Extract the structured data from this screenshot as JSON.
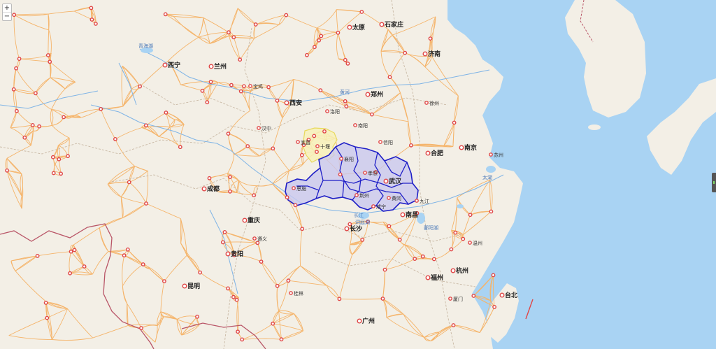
{
  "map": {
    "controls": {
      "zoom_in": "+",
      "zoom_out": "−"
    },
    "colors": {
      "land": "#f3efe6",
      "sea": "#a9d3f3",
      "road": "#f5b46a",
      "border": "#b95567",
      "highlight_fill": "#c9c8ef",
      "highlight_stroke": "#1f1fc7",
      "yellow_fill": "#f7f1b8",
      "yellow_stroke": "#e8d95c"
    },
    "cities": [
      {
        "name": "西宁",
        "tier": "big"
      },
      {
        "name": "兰州",
        "tier": "big"
      },
      {
        "name": "西安",
        "tier": "big"
      },
      {
        "name": "郑州",
        "tier": "big"
      },
      {
        "name": "太原",
        "tier": "big"
      },
      {
        "name": "石家庄",
        "tier": "big"
      },
      {
        "name": "济南",
        "tier": "big"
      },
      {
        "name": "成都",
        "tier": "big"
      },
      {
        "name": "重庆",
        "tier": "big"
      },
      {
        "name": "武汉",
        "tier": "big"
      },
      {
        "name": "合肥",
        "tier": "big"
      },
      {
        "name": "南京",
        "tier": "big"
      },
      {
        "name": "南昌",
        "tier": "big"
      },
      {
        "name": "长沙",
        "tier": "big"
      },
      {
        "name": "贵阳",
        "tier": "big"
      },
      {
        "name": "昆明",
        "tier": "big"
      },
      {
        "name": "杭州",
        "tier": "big"
      },
      {
        "name": "福州",
        "tier": "big"
      },
      {
        "name": "台北",
        "tier": "big"
      },
      {
        "name": "广州",
        "tier": "big"
      },
      {
        "name": "宜昌",
        "tier": "small"
      },
      {
        "name": "襄阳",
        "tier": "small"
      },
      {
        "name": "十堰",
        "tier": "small"
      },
      {
        "name": "荆州",
        "tier": "small"
      },
      {
        "name": "黄冈",
        "tier": "small"
      },
      {
        "name": "恩施",
        "tier": "small"
      },
      {
        "name": "孝感",
        "tier": "small"
      },
      {
        "name": "咸宁",
        "tier": "small"
      },
      {
        "name": "九江",
        "tier": "small"
      },
      {
        "name": "洛阳",
        "tier": "small"
      },
      {
        "name": "信阳",
        "tier": "small"
      },
      {
        "name": "徐州",
        "tier": "small"
      },
      {
        "name": "苏州",
        "tier": "small"
      },
      {
        "name": "温州",
        "tier": "small"
      },
      {
        "name": "厦门",
        "tier": "small"
      },
      {
        "name": "桂林",
        "tier": "small"
      },
      {
        "name": "遵义",
        "tier": "small"
      },
      {
        "name": "宝鸡",
        "tier": "small"
      },
      {
        "name": "汉中",
        "tier": "small"
      },
      {
        "name": "南阳",
        "tier": "small"
      }
    ],
    "water": [
      {
        "name": "青海湖"
      },
      {
        "name": "黄河"
      },
      {
        "name": "长江"
      },
      {
        "name": "洞庭湖"
      },
      {
        "name": "鄱阳湖"
      },
      {
        "name": "太湖"
      }
    ]
  }
}
